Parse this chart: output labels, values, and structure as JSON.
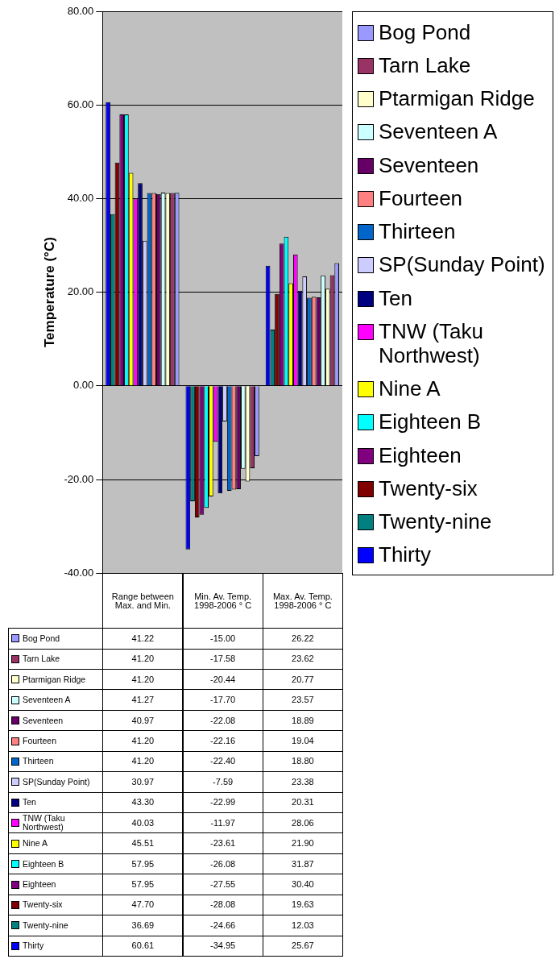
{
  "chart_data": {
    "type": "bar",
    "ylabel": "Temperature (°C)",
    "categories": [
      "Range between Max. and Min.",
      "Min. Av. Temp. 1998-2006 ° C",
      "Max. Av. Temp. 1998-2006 ° C"
    ],
    "ylim": [
      -40,
      80
    ],
    "yticks": [
      {
        "value": -40,
        "label": "-40.00"
      },
      {
        "value": -20,
        "label": "-20.00"
      },
      {
        "value": 0,
        "label": "0.00"
      },
      {
        "value": 20,
        "label": "20.00"
      },
      {
        "value": 40,
        "label": "40.00"
      },
      {
        "value": 60,
        "label": "60.00"
      },
      {
        "value": 80,
        "label": "80.00"
      }
    ],
    "grid": "y",
    "legend": "right",
    "series": [
      {
        "name": "Bog Pond",
        "color": "#9999ff",
        "values": [
          41.22,
          -15.0,
          26.22
        ],
        "value_labels": [
          "41.22",
          "-15.00",
          "26.22"
        ]
      },
      {
        "name": "Tarn Lake",
        "color": "#993366",
        "values": [
          41.2,
          -17.58,
          23.62
        ],
        "value_labels": [
          "41.20",
          "-17.58",
          "23.62"
        ]
      },
      {
        "name": "Ptarmigan Ridge",
        "color": "#ffffcc",
        "values": [
          41.2,
          -20.44,
          20.77
        ],
        "value_labels": [
          "41.20",
          "-20.44",
          "20.77"
        ]
      },
      {
        "name": "Seventeen A",
        "color": "#ccffff",
        "values": [
          41.27,
          -17.7,
          23.57
        ],
        "value_labels": [
          "41.27",
          "-17.70",
          "23.57"
        ]
      },
      {
        "name": "Seventeen",
        "color": "#660066",
        "values": [
          40.97,
          -22.08,
          18.89
        ],
        "value_labels": [
          "40.97",
          "-22.08",
          "18.89"
        ]
      },
      {
        "name": "Fourteen",
        "color": "#ff8080",
        "values": [
          41.2,
          -22.16,
          19.04
        ],
        "value_labels": [
          "41.20",
          "-22.16",
          "19.04"
        ]
      },
      {
        "name": "Thirteen",
        "color": "#0066cc",
        "values": [
          41.2,
          -22.4,
          18.8
        ],
        "value_labels": [
          "41.20",
          "-22.40",
          "18.80"
        ]
      },
      {
        "name": "SP(Sunday Point)",
        "color": "#ccccff",
        "values": [
          30.97,
          -7.59,
          23.38
        ],
        "value_labels": [
          "30.97",
          "-7.59",
          "23.38"
        ]
      },
      {
        "name": "Ten",
        "color": "#000080",
        "values": [
          43.3,
          -22.99,
          20.31
        ],
        "value_labels": [
          "43.30",
          "-22.99",
          "20.31"
        ]
      },
      {
        "name": "TNW (Taku Northwest)",
        "color": "#ff00ff",
        "values": [
          40.03,
          -11.97,
          28.06
        ],
        "value_labels": [
          "40.03",
          "-11.97",
          "28.06"
        ]
      },
      {
        "name": "Nine A",
        "color": "#ffff00",
        "values": [
          45.51,
          -23.61,
          21.9
        ],
        "value_labels": [
          "45.51",
          "-23.61",
          "21.90"
        ]
      },
      {
        "name": "Eighteen B",
        "color": "#00ffff",
        "values": [
          57.95,
          -26.08,
          31.87
        ],
        "value_labels": [
          "57.95",
          "-26.08",
          "31.87"
        ]
      },
      {
        "name": "Eighteen",
        "color": "#800080",
        "values": [
          57.95,
          -27.55,
          30.4
        ],
        "value_labels": [
          "57.95",
          "-27.55",
          "30.40"
        ]
      },
      {
        "name": "Twenty-six",
        "color": "#800000",
        "values": [
          47.7,
          -28.08,
          19.63
        ],
        "value_labels": [
          "47.70",
          "-28.08",
          "19.63"
        ]
      },
      {
        "name": "Twenty-nine",
        "color": "#008080",
        "values": [
          36.69,
          -24.66,
          12.03
        ],
        "value_labels": [
          "36.69",
          "-24.66",
          "12.03"
        ]
      },
      {
        "name": "Thirty",
        "color": "#0000ff",
        "values": [
          60.61,
          -34.95,
          25.67
        ],
        "value_labels": [
          "60.61",
          "-34.95",
          "25.67"
        ]
      }
    ]
  }
}
